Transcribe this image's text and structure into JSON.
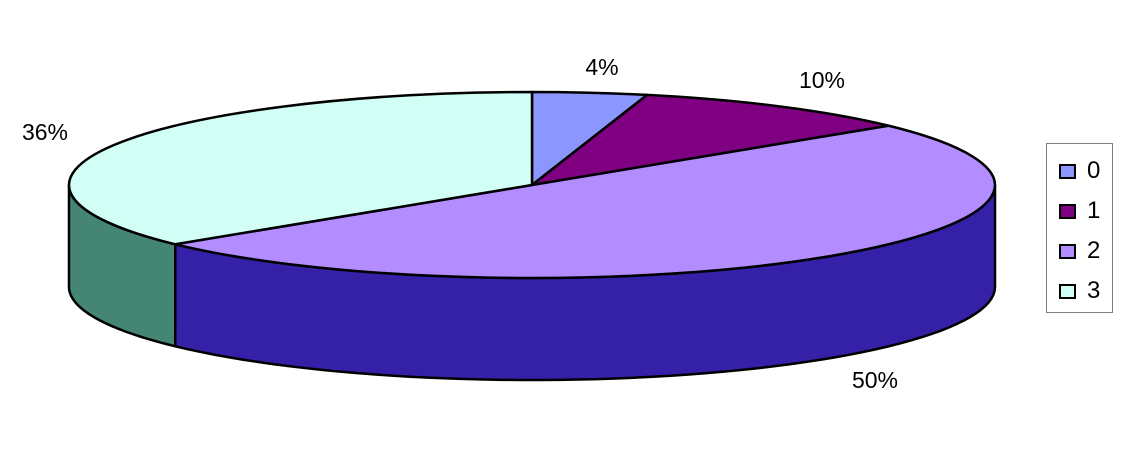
{
  "chart_data": {
    "type": "pie",
    "style": "3d",
    "categories": [
      "0",
      "1",
      "2",
      "3"
    ],
    "values": [
      4,
      10,
      50,
      36
    ],
    "data_labels": [
      "4%",
      "10%",
      "50%",
      "36%"
    ],
    "colors": [
      "#8C96FF",
      "#7F0081",
      "#B38CFF",
      "#D2FFF5"
    ],
    "side_colors": [
      "#4B55B0",
      "#4A0050",
      "#3520A8",
      "#448573"
    ],
    "legend": {
      "position": "right",
      "entries": [
        "0",
        "1",
        "2",
        "3"
      ]
    },
    "title": ""
  }
}
